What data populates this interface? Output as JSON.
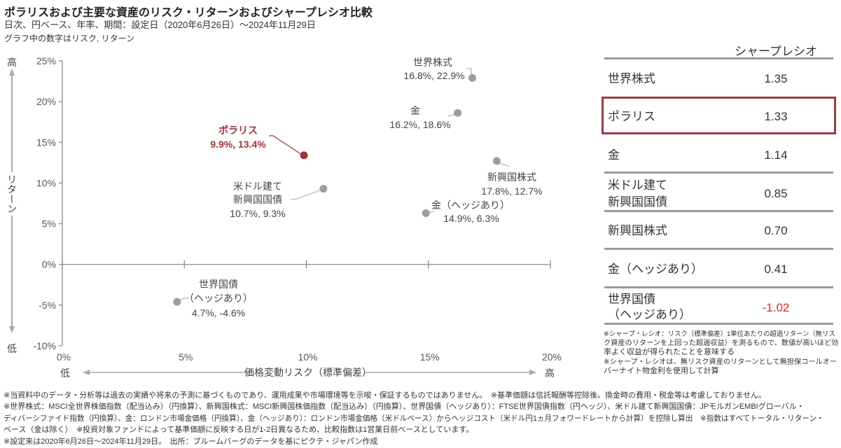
{
  "chart_data": {
    "type": "scatter",
    "title": "ポラリスおよび主要な資産のリスク・リターンおよびシャープレシオ比較",
    "subtitle": "日次、円ベース、年率、期間：設定日（2020年6月26日）～2024年11月29日",
    "note": "グラフ中の数字はリスク, リターン",
    "xlabel": "価格変動リスク（標準偏差）",
    "ylabel": "リターン",
    "x_low_label": "低",
    "x_high_label": "高",
    "y_low_label": "低",
    "y_high_label": "高",
    "xlim": [
      0,
      20
    ],
    "ylim": [
      -10,
      25
    ],
    "grid": false,
    "legend": "none",
    "x_ticks": [
      {
        "value": 0,
        "label": "0%"
      },
      {
        "value": 5,
        "label": "5%"
      },
      {
        "value": 10,
        "label": "10%"
      },
      {
        "value": 15,
        "label": "15%"
      },
      {
        "value": 20,
        "label": "20%"
      }
    ],
    "y_ticks": [
      {
        "value": 25,
        "label": "25%"
      },
      {
        "value": 20,
        "label": "20%"
      },
      {
        "value": 15,
        "label": "15%"
      },
      {
        "value": 10,
        "label": "10%"
      },
      {
        "value": 5,
        "label": "5%"
      },
      {
        "value": 0,
        "label": "0%"
      },
      {
        "value": -5,
        "label": "-5%"
      },
      {
        "value": -10,
        "label": "-10%"
      }
    ],
    "points": [
      {
        "name_lines": [
          "世界株式"
        ],
        "x": 16.8,
        "y": 22.9,
        "value_label": "16.8%, 22.9%",
        "highlight": false
      },
      {
        "name_lines": [
          "ポラリス"
        ],
        "x": 9.9,
        "y": 13.4,
        "value_label": "9.9%, 13.4%",
        "highlight": true
      },
      {
        "name_lines": [
          "金"
        ],
        "x": 16.2,
        "y": 18.6,
        "value_label": "16.2%, 18.6%",
        "highlight": false
      },
      {
        "name_lines": [
          "米ドル建て",
          "新興国国債"
        ],
        "x": 10.7,
        "y": 9.3,
        "value_label": "10.7%, 9.3%",
        "highlight": false
      },
      {
        "name_lines": [
          "新興国株式"
        ],
        "x": 17.8,
        "y": 12.7,
        "value_label": "17.8%, 12.7%",
        "highlight": false
      },
      {
        "name_lines": [
          "金（ヘッジあり）"
        ],
        "x": 14.9,
        "y": 6.3,
        "value_label": "14.9%, 6.3%",
        "highlight": false
      },
      {
        "name_lines": [
          "世界国債",
          "（ヘッジあり）"
        ],
        "x": 4.7,
        "y": -4.6,
        "value_label": "4.7%, -4.6%",
        "highlight": false
      }
    ]
  },
  "sharpe_table": {
    "header": "シャープレシオ",
    "rows": [
      {
        "label_lines": [
          "世界株式"
        ],
        "value": "1.35",
        "highlighted": false
      },
      {
        "label_lines": [
          "ポラリス"
        ],
        "value": "1.33",
        "highlighted": true
      },
      {
        "label_lines": [
          "金"
        ],
        "value": "1.14",
        "highlighted": false
      },
      {
        "label_lines": [
          "米ドル建て",
          "新興国国債"
        ],
        "value": "0.85",
        "highlighted": false
      },
      {
        "label_lines": [
          "新興国株式"
        ],
        "value": "0.70",
        "highlighted": false
      },
      {
        "label_lines": [
          "金（ヘッジあり）"
        ],
        "value": "0.41",
        "highlighted": false
      },
      {
        "label_lines": [
          "世界国債",
          "（ヘッジあり）"
        ],
        "value": "-1.02",
        "highlighted": false
      }
    ],
    "notes": [
      "※シャープ・レシオ：リスク（標準偏差）1単位あたりの超過リターン（無リス",
      "ク資産のリターンを上回った超過収益）を測るもので、数値が高いほど効",
      "率よく収益が得られたことを意味する",
      "※シャープ・レシオは、無リスク資産のリターンとして無担保コールオー",
      "バーナイト物金利を使用して計算"
    ]
  },
  "footnotes": [
    "※当資料中のデータ・分析等は過去の実績や将来の予測に基づくものであり、運用成果や市場環境等を示唆・保証するものではありません。　※基準価額は信託報酬等控除後。換金時の費用・税金等は考慮しておりません。",
    "※世界株式：MSCI全世界株価指数（配当込み）（円換算）、新興国株式：MSCI新興国株価指数（配当込み）（円換算）、世界国債（ヘッジあり）：FTSE世界国債指数（円ヘッジ）、米ドル建て新興国国債：JPモルガンEMBIグローバル・",
    "ディバーシファイド指数（円換算）、金：ロンドン市場金価格（円換算）、金（ヘッジあり）：ロンドン市場金価格（米ドルベース）からヘッジコスト（米ドル円1ヵ月フォワードレートから計算）を控除し算出　※指数はすべてトータル・リターン・",
    "ベース（金は除く）　※投資対象ファンドによって基準価額に反映する日が1-2日異なるため、比較指数は1営業日前ベースとしています。",
    "※設定来は2020年6月26日～2024年11月29日。　出所：ブルームバーグのデータを基にピクテ・ジャパン作成"
  ],
  "colors": {
    "highlight": "#a3313b",
    "highlight_box": "#9b3a42",
    "negative": "#e3262b",
    "point": "#9d9d9d",
    "axis": "#8a8a8a",
    "arrow": "#aaaaaa"
  }
}
